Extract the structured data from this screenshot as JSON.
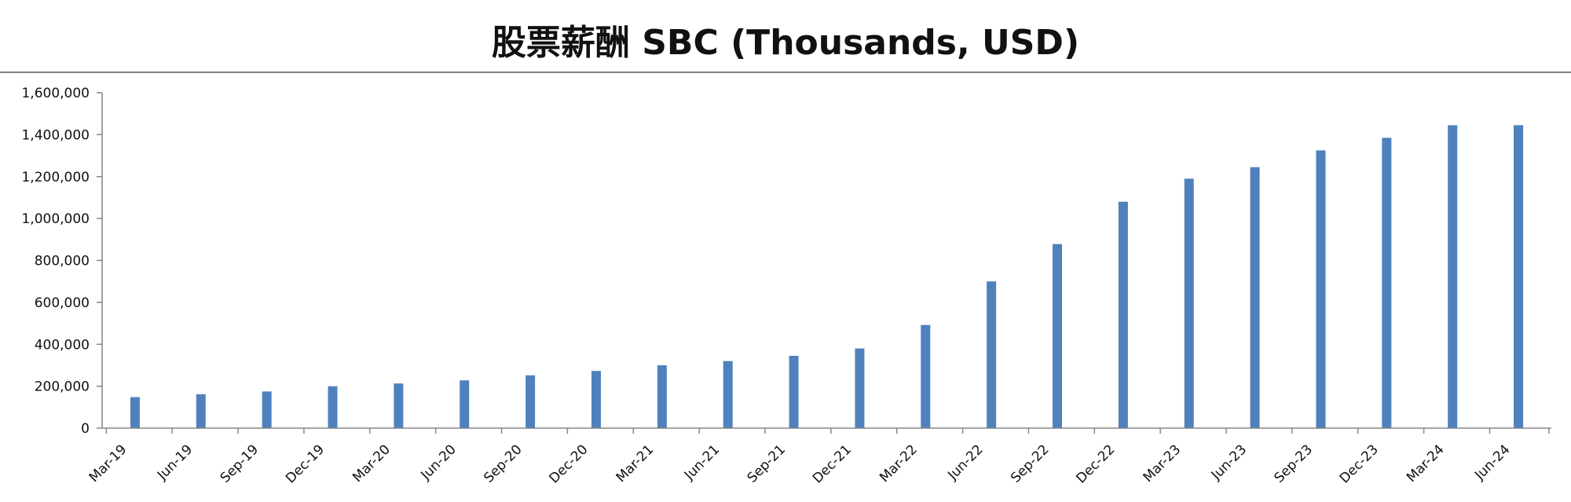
{
  "chart_data": {
    "type": "bar",
    "title": "股票薪酬 SBC (Thousands, USD)",
    "xlabel": "",
    "ylabel": "",
    "ylim": [
      0,
      1600000
    ],
    "yticks": [
      "0",
      "200,000",
      "400,000",
      "600,000",
      "800,000",
      "1,000,000",
      "1,200,000",
      "1,400,000",
      "1,600,000"
    ],
    "categories": [
      "Mar-19",
      "Jun-19",
      "Sep-19",
      "Dec-19",
      "Mar-20",
      "Jun-20",
      "Sep-20",
      "Dec-20",
      "Mar-21",
      "Jun-21",
      "Sep-21",
      "Dec-21",
      "Mar-22",
      "Jun-22",
      "Sep-22",
      "Dec-22",
      "Mar-23",
      "Jun-23",
      "Sep-23",
      "Dec-23",
      "Mar-24",
      "Jun-24"
    ],
    "values": [
      148000,
      162000,
      175000,
      200000,
      213000,
      228000,
      252000,
      273000,
      300000,
      320000,
      345000,
      380000,
      492000,
      700000,
      878000,
      1080000,
      1190000,
      1245000,
      1325000,
      1385000,
      1445000,
      1445000
    ],
    "grid": false,
    "legend": "none",
    "bar_color": "#4f81bd",
    "axis_color": "#868686"
  }
}
